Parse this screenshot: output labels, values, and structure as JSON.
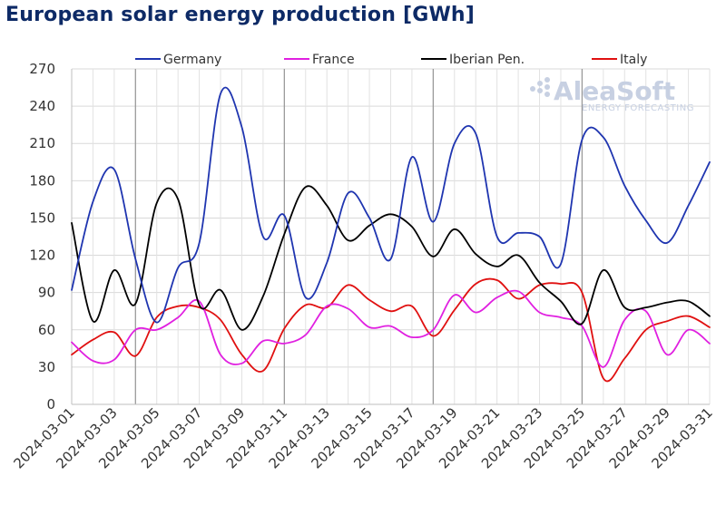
{
  "chart_data": {
    "type": "line",
    "title": "European solar energy production [GWh]",
    "ylim": [
      0,
      270
    ],
    "yticks": [
      0,
      30,
      60,
      90,
      120,
      150,
      180,
      210,
      240,
      270
    ],
    "grid": true,
    "legend_position": "top",
    "x": [
      "2024-03-01",
      "2024-03-02",
      "2024-03-03",
      "2024-03-04",
      "2024-03-05",
      "2024-03-06",
      "2024-03-07",
      "2024-03-08",
      "2024-03-09",
      "2024-03-10",
      "2024-03-11",
      "2024-03-12",
      "2024-03-13",
      "2024-03-14",
      "2024-03-15",
      "2024-03-16",
      "2024-03-17",
      "2024-03-18",
      "2024-03-19",
      "2024-03-20",
      "2024-03-21",
      "2024-03-22",
      "2024-03-23",
      "2024-03-24",
      "2024-03-25",
      "2024-03-26",
      "2024-03-27",
      "2024-03-28",
      "2024-03-29",
      "2024-03-30",
      "2024-03-31"
    ],
    "xtick_labels": [
      "2024-03-01",
      "2024-03-03",
      "2024-03-05",
      "2024-03-07",
      "2024-03-09",
      "2024-03-11",
      "2024-03-13",
      "2024-03-15",
      "2024-03-17",
      "2024-03-19",
      "2024-03-21",
      "2024-03-23",
      "2024-03-25",
      "2024-03-27",
      "2024-03-29",
      "2024-03-31"
    ],
    "series": [
      {
        "name": "Germany",
        "color": "#1f35b0",
        "values": [
          92,
          163,
          189,
          117,
          66,
          110,
          130,
          250,
          223,
          135,
          152,
          86,
          114,
          170,
          150,
          117,
          199,
          147,
          210,
          218,
          135,
          138,
          135,
          113,
          213,
          215,
          176,
          148,
          130,
          160,
          195
        ]
      },
      {
        "name": "France",
        "color": "#e020e0",
        "values": [
          50,
          35,
          36,
          60,
          60,
          70,
          83,
          40,
          33,
          51,
          49,
          56,
          79,
          77,
          62,
          63,
          54,
          60,
          88,
          74,
          86,
          91,
          74,
          70,
          63,
          30,
          68,
          75,
          40,
          60,
          49
        ]
      },
      {
        "name": "Iberian Pen.",
        "color": "#000000",
        "values": [
          146,
          67,
          108,
          81,
          162,
          165,
          80,
          92,
          60,
          87,
          137,
          175,
          160,
          132,
          144,
          153,
          143,
          119,
          141,
          121,
          111,
          120,
          98,
          83,
          65,
          108,
          78,
          78,
          82,
          83,
          71
        ]
      },
      {
        "name": "Italy",
        "color": "#e01010",
        "values": [
          40,
          52,
          58,
          39,
          70,
          79,
          78,
          68,
          40,
          27,
          61,
          80,
          78,
          96,
          84,
          75,
          79,
          55,
          76,
          97,
          100,
          85,
          96,
          97,
          90,
          21,
          37,
          60,
          67,
          71,
          62
        ]
      }
    ]
  },
  "logo": {
    "text": "AleaSoft",
    "subtext": "ENERGY FORECASTING"
  }
}
